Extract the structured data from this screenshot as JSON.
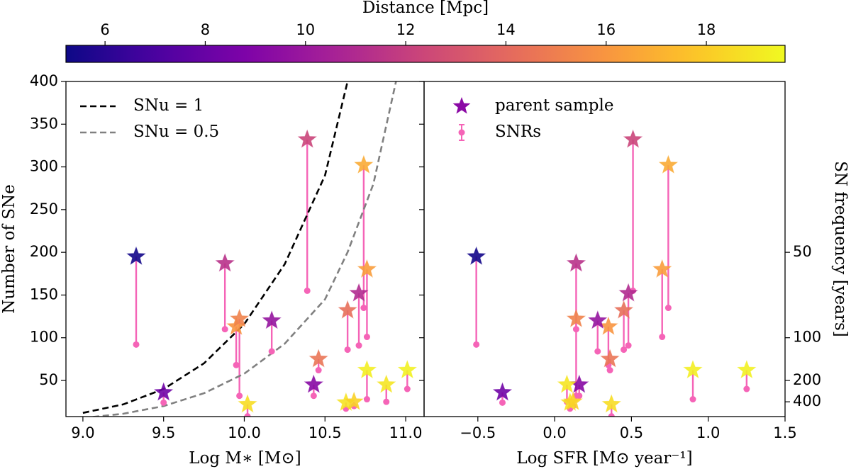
{
  "chart_data": [
    {
      "type": "colorbar",
      "label": "Distance [Mpc]",
      "colormap": "plasma",
      "clim": [
        5.22,
        19.57
      ],
      "ticks": [
        6,
        8,
        10,
        12,
        14,
        16,
        18
      ]
    },
    {
      "type": "scatter",
      "xlabel": "Log M∗ [M⊙]",
      "ylabel": "Number of SNe",
      "xlim": [
        8.895,
        11.114
      ],
      "ylim": [
        7.7,
        400
      ],
      "xticks": [
        {
          "value": 9,
          "label": "9.0"
        },
        9.5,
        {
          "value": 10,
          "label": "10.0"
        },
        10.5,
        {
          "value": 11,
          "label": "11.0"
        }
      ],
      "yticks": [
        50,
        100,
        150,
        200,
        250,
        300,
        350,
        400
      ],
      "ytick_labels": true,
      "legend": "upper left",
      "series": [
        {
          "name": "SNu = 1",
          "kind": "line",
          "linestyle": "dashed",
          "color": "#000000",
          "x": [
            9.0,
            9.25,
            9.5,
            9.75,
            10.0,
            10.25,
            10.5,
            10.64
          ],
          "values": [
            12,
            22,
            40,
            70,
            116,
            186,
            290,
            400
          ]
        },
        {
          "name": "SNu = 0.5",
          "kind": "line",
          "linestyle": "dashed",
          "color": "#808080",
          "x": [
            9.0,
            9.25,
            9.5,
            9.75,
            10.0,
            10.25,
            10.5,
            10.64,
            10.8,
            10.94
          ],
          "values": [
            6,
            11,
            20,
            35,
            58,
            93,
            145,
            200,
            280,
            400
          ]
        },
        {
          "kind": "point",
          "color": "#f564b7",
          "x": [
            9.33,
            9.5,
            9.88,
            9.95,
            9.97,
            10.02,
            10.17,
            10.39,
            10.43,
            10.46,
            10.64,
            10.63,
            10.68,
            10.71,
            10.74,
            10.76,
            10.88,
            10.76,
            11.01
          ],
          "values": [
            92,
            24,
            110,
            68,
            32,
            8,
            84,
            155,
            32,
            62,
            86,
            17,
            20,
            91,
            135,
            101,
            25,
            28,
            40
          ]
        },
        {
          "kind": "star",
          "x": [
            9.33,
            9.5,
            9.88,
            9.95,
            9.97,
            10.02,
            10.17,
            10.39,
            10.43,
            10.46,
            10.64,
            10.63,
            10.68,
            10.71,
            10.74,
            10.76,
            10.88,
            10.76,
            11.01
          ],
          "values": [
            195,
            36,
            187,
            113,
            122,
            22,
            120,
            332,
            45,
            75,
            132,
            24,
            25,
            152,
            302,
            180,
            45,
            62,
            62
          ],
          "color_values": [
            5.4,
            8.3,
            11.4,
            16.0,
            15.2,
            18.6,
            9.8,
            12.3,
            9.2,
            14.6,
            14.3,
            18.8,
            18.2,
            11.0,
            16.8,
            16.3,
            18.9,
            19.2,
            19.3
          ]
        }
      ]
    },
    {
      "type": "scatter",
      "xlabel": "Log SFR [M⊙ year⁻¹]",
      "y2label": "SN frequency [years]",
      "xlim": [
        -0.85,
        1.5
      ],
      "ylim": [
        7.7,
        400
      ],
      "xticks": [
        {
          "value": -0.5,
          "label": "−0.5"
        },
        {
          "value": 0,
          "label": "0.0"
        },
        0.5,
        {
          "value": 1,
          "label": "1.0"
        },
        1.5
      ],
      "yticks": [
        50,
        100,
        150,
        200,
        250,
        300,
        350,
        400
      ],
      "ytick_labels": false,
      "y2lim": [
        1300,
        25
      ],
      "y2scale": "reciprocal",
      "y2ticks": [
        50,
        100,
        200,
        400
      ],
      "legend": "upper left",
      "series": [
        {
          "name": "parent sample",
          "kind": "star",
          "color": "#8b0aa5",
          "x": [
            -0.51,
            -0.34,
            0.14,
            0.35,
            0.14,
            0.37,
            0.28,
            0.51,
            0.16,
            0.36,
            0.45,
            0.1,
            0.12,
            0.48,
            0.74,
            0.7,
            0.08,
            0.9,
            1.25
          ],
          "values": [
            195,
            36,
            187,
            113,
            122,
            22,
            120,
            332,
            45,
            75,
            132,
            24,
            25,
            152,
            302,
            180,
            45,
            62,
            62
          ],
          "color_values": [
            5.4,
            8.3,
            11.4,
            16.0,
            15.2,
            18.6,
            9.8,
            12.3,
            9.2,
            14.6,
            14.3,
            18.8,
            18.2,
            11.0,
            16.8,
            16.3,
            18.9,
            19.2,
            19.3
          ]
        },
        {
          "name": "SNRs",
          "kind": "point",
          "color": "#f564b7",
          "x": [
            -0.51,
            -0.34,
            0.14,
            0.35,
            0.14,
            0.37,
            0.28,
            0.51,
            0.16,
            0.36,
            0.45,
            0.1,
            0.12,
            0.48,
            0.74,
            0.7,
            0.08,
            0.9,
            1.25
          ],
          "values": [
            92,
            24,
            110,
            68,
            32,
            8,
            84,
            155,
            32,
            62,
            86,
            17,
            20,
            91,
            135,
            101,
            25,
            28,
            40
          ]
        }
      ]
    }
  ]
}
